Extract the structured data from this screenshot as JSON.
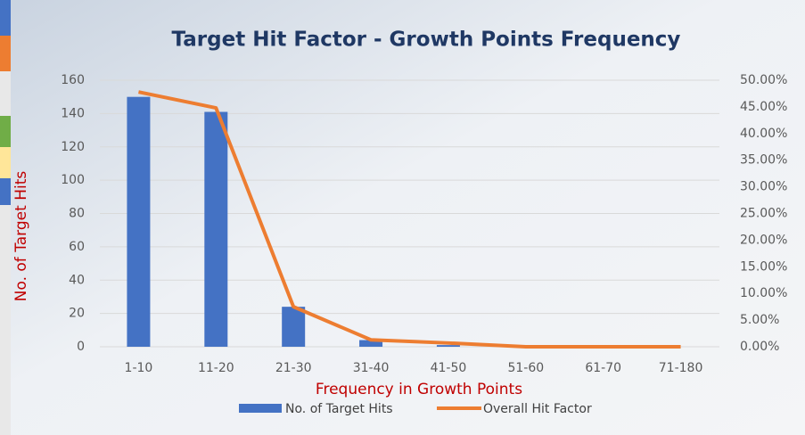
{
  "chart_data": {
    "type": "bar-line",
    "title": "Target Hit Factor - Growth Points Frequency",
    "x_label": "Frequency in Growth Points",
    "y_label": "No. of Target Hits",
    "categories": [
      "1-10",
      "11-20",
      "21-30",
      "31-40",
      "41-50",
      "51-60",
      "61-70",
      "71-180"
    ],
    "series": [
      {
        "name": "No. of Target Hits",
        "type": "bar",
        "color": "#4472c4",
        "values": [
          150,
          141,
          24,
          4,
          1,
          0,
          0,
          0
        ]
      },
      {
        "name": "Overall Hit Factor",
        "type": "line",
        "color": "#ed7d31",
        "axis": "y2",
        "values": [
          47.8,
          44.8,
          7.5,
          1.3,
          0.7,
          0,
          0,
          0
        ]
      }
    ],
    "ylim": [
      0,
      160
    ],
    "yticks": [
      0,
      20,
      40,
      60,
      80,
      100,
      120,
      140,
      160
    ],
    "y2lim": [
      0,
      50
    ],
    "y2ticks": [
      {
        "value": 0,
        "label": "0.00%"
      },
      {
        "value": 5,
        "label": "5.00%"
      },
      {
        "value": 10,
        "label": "10.00%"
      },
      {
        "value": 15,
        "label": "15.00%"
      },
      {
        "value": 20,
        "label": "20.00%"
      },
      {
        "value": 25,
        "label": "25.00%"
      },
      {
        "value": 30,
        "label": "30.00%"
      },
      {
        "value": 35,
        "label": "35.00%"
      },
      {
        "value": 40,
        "label": "40.00%"
      },
      {
        "value": 45,
        "label": "45.00%"
      },
      {
        "value": 50,
        "label": "50.00%"
      }
    ],
    "grid": true,
    "legend": "bottom"
  }
}
